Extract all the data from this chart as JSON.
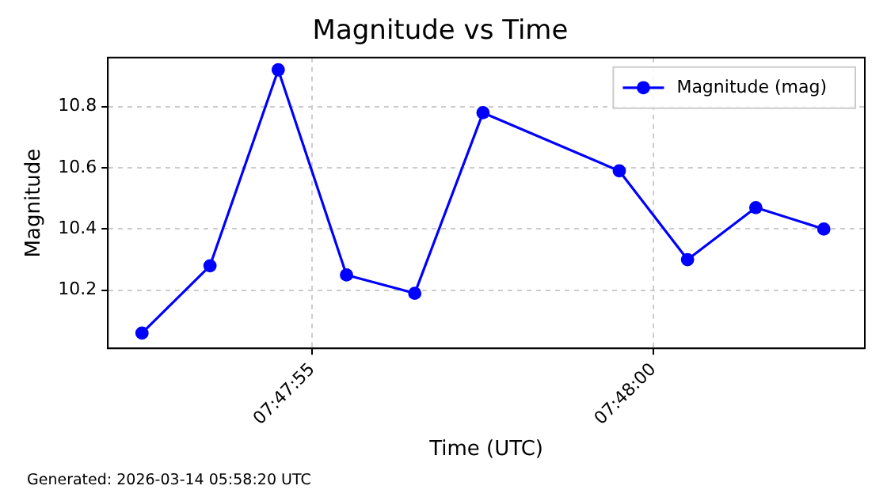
{
  "chart_data": {
    "type": "line",
    "title": "Magnitude vs Time",
    "xlabel": "Time (UTC)",
    "ylabel": "Magnitude",
    "x": [
      7.797917,
      7.798194,
      7.798472,
      7.79875,
      7.799028,
      7.799306,
      7.799861,
      7.800139,
      7.800417,
      7.800694
    ],
    "series": [
      {
        "name": "Magnitude (mag)",
        "color": "#0000ff",
        "values": [
          10.06,
          10.28,
          10.92,
          10.25,
          10.19,
          10.78,
          10.59,
          10.3,
          10.47,
          10.4
        ]
      }
    ],
    "xlim": [
      7.797778,
      7.800861
    ],
    "xticks": [
      {
        "value": 7.798611,
        "label": "07:47:55"
      },
      {
        "value": 7.8,
        "label": "07:48:00"
      }
    ],
    "ylim": [
      10.01,
      10.96
    ],
    "yticks": [
      10.2,
      10.4,
      10.6,
      10.8
    ],
    "grid": true,
    "legend": "top right",
    "marker": "circle",
    "line_style": "solid",
    "annotations": [
      "Generated: 2026-03-14 05:58:20 UTC"
    ]
  }
}
